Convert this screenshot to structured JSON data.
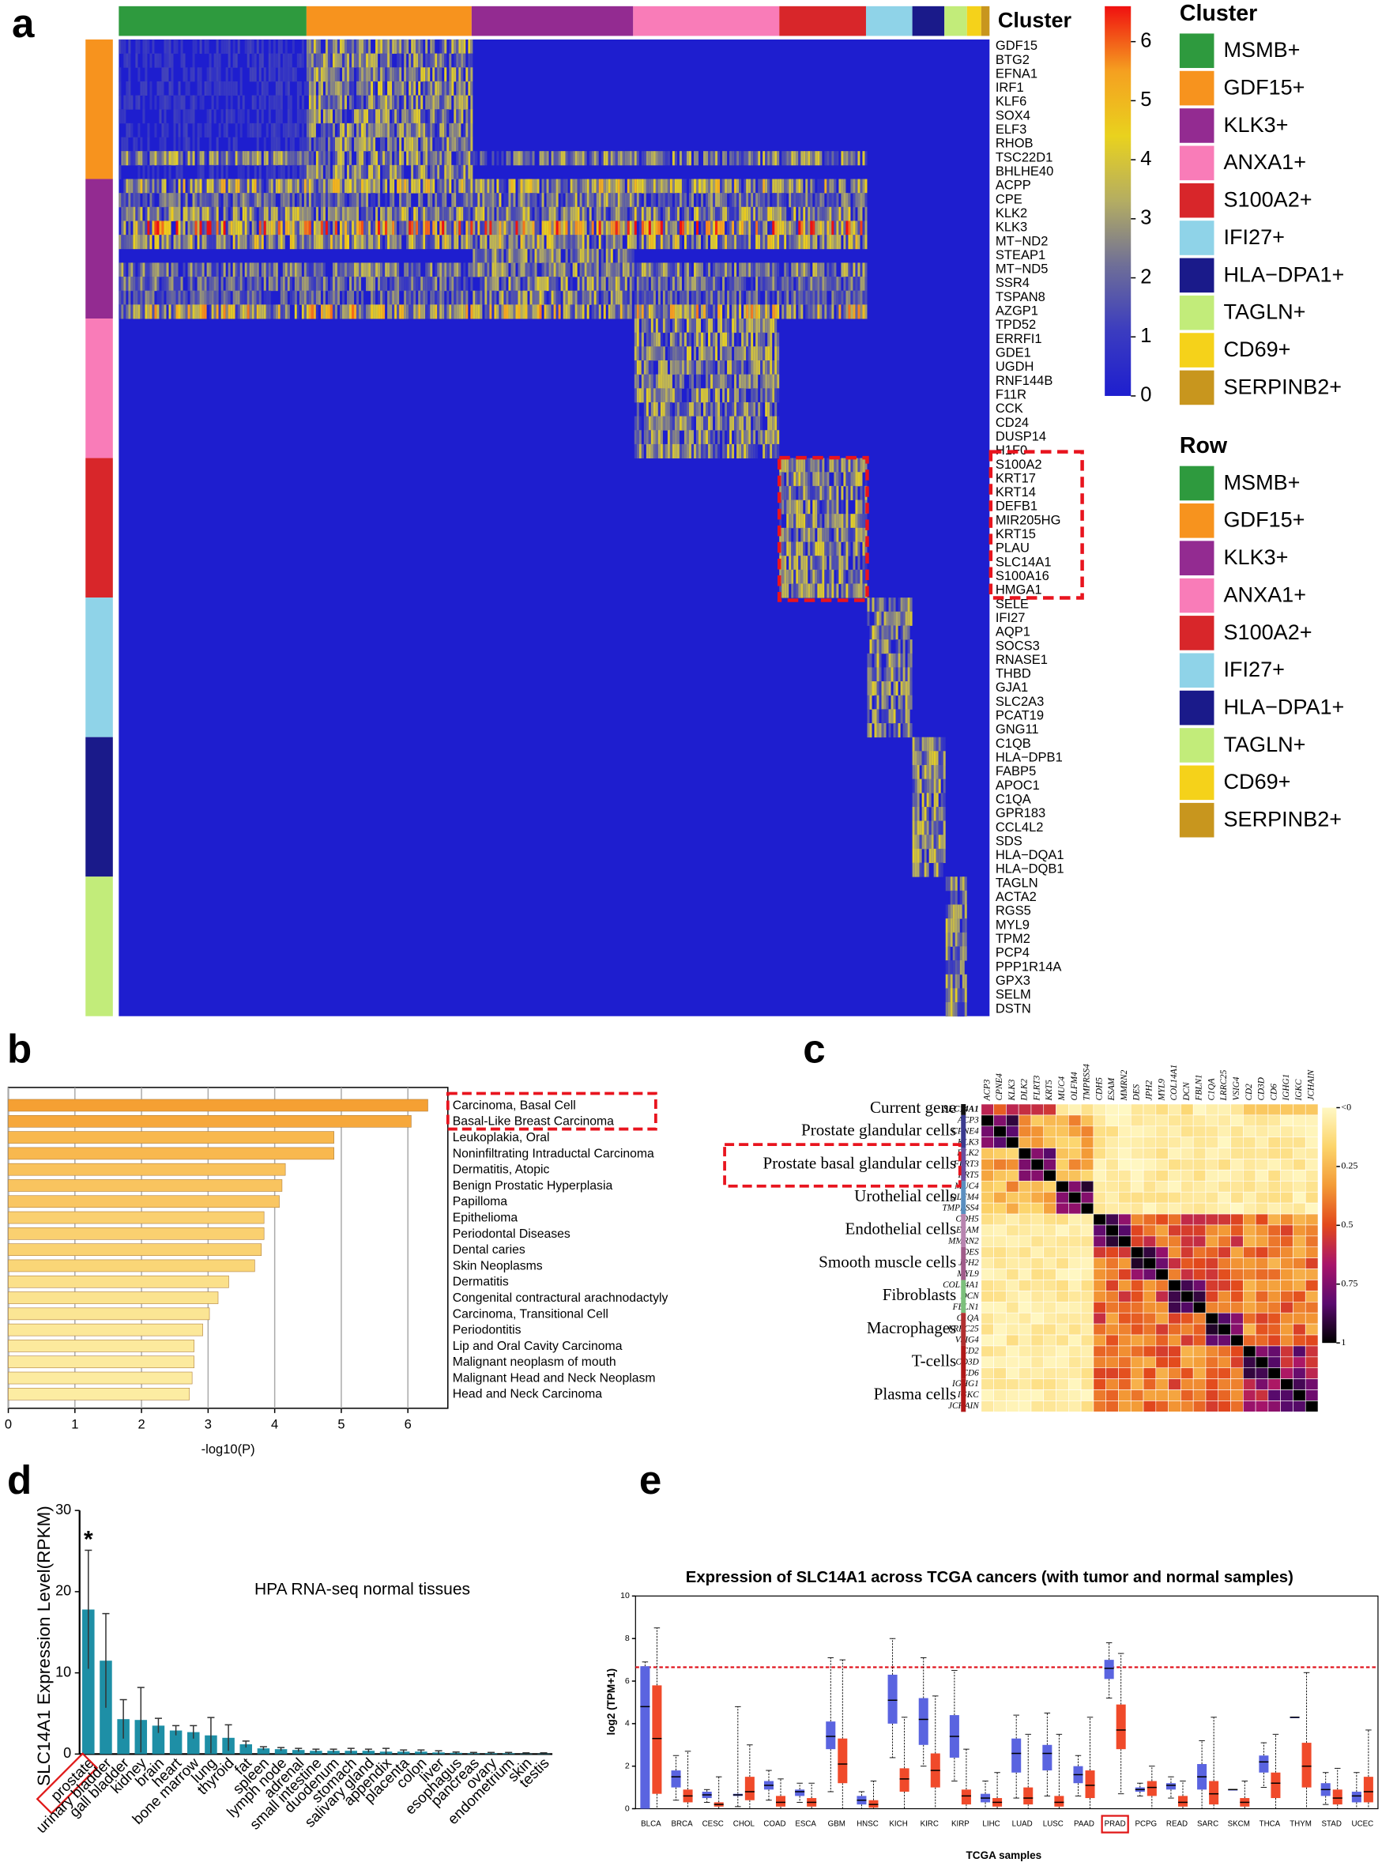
{
  "panels": [
    "a",
    "b",
    "c",
    "d",
    "e"
  ],
  "chart_data": [
    {
      "type": "heatmap",
      "cluster_label": "Cluster",
      "legend_titles": [
        "Cluster",
        "Row"
      ],
      "clusters": [
        {
          "name": "MSMB+",
          "color": "#2e9a3e"
        },
        {
          "name": "GDF15+",
          "color": "#f7931e"
        },
        {
          "name": "KLK3+",
          "color": "#932b91"
        },
        {
          "name": "ANXA1+",
          "color": "#f97cb8"
        },
        {
          "name": "S100A2+",
          "color": "#d8262a"
        },
        {
          "name": "IFI27+",
          "color": "#8fd3e8"
        },
        {
          "name": "HLA−DPA1+",
          "color": "#1a1a8a"
        },
        {
          "name": "TAGLN+",
          "color": "#c2ec7a"
        },
        {
          "name": "CD69+",
          "color": "#f5d21a"
        },
        {
          "name": "SERPINB2+",
          "color": "#c8961e"
        }
      ],
      "genes": [
        "GDF15",
        "BTG2",
        "EFNA1",
        "IRF1",
        "KLF6",
        "SOX4",
        "ELF3",
        "RHOB",
        "TSC22D1",
        "BHLHE40",
        "ACPP",
        "CPE",
        "KLK2",
        "KLK3",
        "MT−ND2",
        "STEAP1",
        "MT−ND5",
        "SSR4",
        "TSPAN8",
        "AZGP1",
        "TPD52",
        "ERRFI1",
        "GDE1",
        "UGDH",
        "RNF144B",
        "F11R",
        "CCK",
        "CD24",
        "DUSP14",
        "H1F0",
        "S100A2",
        "KRT17",
        "KRT14",
        "DEFB1",
        "MIR205HG",
        "KRT15",
        "PLAU",
        "SLC14A1",
        "S100A16",
        "HMGA1",
        "SELE",
        "IFI27",
        "AQP1",
        "SOCS3",
        "RNASE1",
        "THBD",
        "GJA1",
        "SLC2A3",
        "PCAT19",
        "GNG11",
        "C1QB",
        "HLA−DPB1",
        "FABP5",
        "APOC1",
        "C1QA",
        "GPR183",
        "CCL4L2",
        "SDS",
        "HLA−DQA1",
        "HLA−DQB1",
        "TAGLN",
        "ACTA2",
        "RGS5",
        "MYL9",
        "TPM2",
        "PCP4",
        "PPP1R14A",
        "GPX3",
        "SELM",
        "DSTN"
      ],
      "zlim": [
        0,
        6.6
      ],
      "zticks": [
        0,
        1,
        2,
        3,
        4,
        5,
        6
      ],
      "colormap": [
        "#1e1ecf",
        "#3b3cc0",
        "#6e6e98",
        "#b4ad62",
        "#e9d21e",
        "#f5a020",
        "#f01010"
      ]
    },
    {
      "type": "bar",
      "orientation": "horizontal",
      "xlabel": "-log10(P)",
      "categories": [
        "Carcinoma, Basal Cell",
        "Basal-Like Breast Carcinoma",
        "Leukoplakia, Oral",
        "Noninfiltrating Intraductal Carcinoma",
        "Dermatitis, Atopic",
        "Benign Prostatic Hyperplasia",
        "Papilloma",
        "Epithelioma",
        "Periodontal Diseases",
        "Dental caries",
        "Skin Neoplasms",
        "Dermatitis",
        "Congenital contractural arachnodactyly",
        "Carcinoma, Transitional Cell",
        "Periodontitis",
        "Lip and Oral Cavity Carcinoma",
        "Malignant neoplasm of mouth",
        "Malignant Head and Neck Neoplasm",
        "Head and Neck Carcinoma"
      ],
      "values": [
        6.3,
        6.05,
        4.89,
        4.89,
        4.16,
        4.11,
        4.07,
        3.84,
        3.84,
        3.8,
        3.7,
        3.31,
        3.15,
        3.02,
        2.92,
        2.79,
        2.79,
        2.76,
        2.72
      ],
      "colors": [
        "#f5a033",
        "#f6a83c",
        "#f8b84e",
        "#f8b84e",
        "#f9c25c",
        "#f9c45f",
        "#f9c662",
        "#fad070",
        "#fad070",
        "#fad272",
        "#fad677",
        "#fbe08a",
        "#fbe38f",
        "#fbe594",
        "#fce899",
        "#fcea9d",
        "#fcea9e",
        "#fceba0",
        "#fceca2"
      ],
      "xlim": [
        0,
        6.6
      ],
      "xticks": [
        0,
        1,
        2,
        3,
        4,
        5,
        6
      ],
      "grid": true
    },
    {
      "type": "correlation",
      "groups": [
        {
          "name": "Current gene",
          "color": "#111111"
        },
        {
          "name": "Prostate glandular cells",
          "color": "#3b3b8f"
        },
        {
          "name": "Prostate basal glandular cells",
          "color": "#6a4fa0"
        },
        {
          "name": "Urothelial cells",
          "color": "#5b8fc0"
        },
        {
          "name": "Endothelial cells",
          "color": "#b884b0"
        },
        {
          "name": "Smooth muscle cells",
          "color": "#a05b8a"
        },
        {
          "name": "Fibroblasts",
          "color": "#7cc07c"
        },
        {
          "name": "Macrophages",
          "color": "#b03030"
        },
        {
          "name": "T-cells",
          "color": "#b01818"
        },
        {
          "name": "Plasma cells",
          "color": "#b01818"
        }
      ],
      "row_genes": [
        "SLC14A1",
        "ACP3",
        "CPNE4",
        "KLK3",
        "DLK2",
        "FLRT3",
        "KRT5",
        "MUC4",
        "OLFM4",
        "TMPRSS4",
        "CDH5",
        "ESAM",
        "MMRN2",
        "DES",
        "JPH2",
        "MYL9",
        "COL14A1",
        "DCN",
        "FBLN1",
        "C1QA",
        "LRRC25",
        "VSIG4",
        "CD2",
        "CD3D",
        "CD6",
        "IGHG1",
        "IGKC",
        "JCHAIN"
      ],
      "col_genes": [
        "ACP3",
        "CPNE4",
        "KLK3",
        "DLK2",
        "FLRT3",
        "KRT5",
        "MUC4",
        "OLFM4",
        "TMPRSS4",
        "CDH5",
        "ESAM",
        "MMRN2",
        "DES",
        "JPH2",
        "MYL9",
        "COL14A1",
        "DCN",
        "FBLN1",
        "C1QA",
        "LRRC25",
        "VSIG4",
        "CD2",
        "CD3D",
        "CD6",
        "IGHG1",
        "IGKC",
        "JCHAIN"
      ],
      "zlim": [
        0,
        1
      ],
      "zticks": [
        {
          "value": 0,
          "label": "<0"
        },
        0.25,
        0.5,
        0.75,
        1
      ],
      "colormap": [
        "#fff8c4",
        "#fcd46a",
        "#f39a36",
        "#e2481c",
        "#a8146a",
        "#5a0a6e",
        "#000000"
      ]
    },
    {
      "type": "bar",
      "title": "HPA RNA-seq normal tissues",
      "ylabel": "SLC14A1 Expression Level(RPKM)",
      "annotation": "*",
      "color": "#1e8fa6",
      "categories": [
        "prostate",
        "urinary bladder",
        "gall bladder",
        "kidney",
        "brain",
        "heart",
        "bone marrow",
        "lung",
        "thyroid",
        "fat",
        "spleen",
        "lymph node",
        "adrenal",
        "small intestine",
        "duodenum",
        "stomach",
        "salivary gland",
        "appendix",
        "placenta",
        "colon",
        "liver",
        "esophagus",
        "pancreas",
        "ovary",
        "endometrium",
        "skin",
        "testis"
      ],
      "values": [
        17.8,
        11.5,
        4.3,
        4.2,
        3.5,
        2.9,
        2.7,
        2.3,
        2.0,
        1.2,
        0.7,
        0.6,
        0.5,
        0.4,
        0.4,
        0.4,
        0.4,
        0.3,
        0.3,
        0.3,
        0.2,
        0.15,
        0.1,
        0.1,
        0.1,
        0.05,
        0.05
      ],
      "errors": [
        7.3,
        5.8,
        2.4,
        4.0,
        0.9,
        0.6,
        0.8,
        2.2,
        1.6,
        0.4,
        0.2,
        0.2,
        0.2,
        0.2,
        0.2,
        0.3,
        0.2,
        0.4,
        0.2,
        0.2,
        0.2,
        0.1,
        0.1,
        0.1,
        0.1,
        0.1,
        0.1
      ],
      "ylim": [
        0,
        30
      ],
      "yticks": [
        0,
        10,
        20,
        30
      ]
    },
    {
      "type": "box",
      "title": "Expression of SLC14A1 across TCGA cancers (with tumor and normal samples)",
      "xlabel": "TCGA samples",
      "ylabel": "log2 (TPM+1)",
      "categories": [
        "BLCA",
        "BRCA",
        "CESC",
        "CHOL",
        "COAD",
        "ESCA",
        "GBM",
        "HNSC",
        "KICH",
        "KIRC",
        "KIRP",
        "LIHC",
        "LUAD",
        "LUSC",
        "PAAD",
        "PRAD",
        "PCPG",
        "READ",
        "SARC",
        "SKCM",
        "THCA",
        "THYM",
        "STAD",
        "UCEC"
      ],
      "series": [
        {
          "color": "#5a64e0",
          "median": [
            4.8,
            1.5,
            0.65,
            0.65,
            1.1,
            0.8,
            3.4,
            0.4,
            5.1,
            4.2,
            3.4,
            0.5,
            2.6,
            2.6,
            1.6,
            6.6,
            0.9,
            1.1,
            1.5,
            0.9,
            2.2,
            4.3,
            0.9,
            0.6
          ],
          "q1": [
            0,
            1.0,
            0.5,
            0.6,
            0.9,
            0.6,
            2.8,
            0.2,
            4.0,
            3.0,
            2.4,
            0.3,
            1.7,
            1.8,
            1.2,
            6.1,
            0.8,
            0.9,
            0.9,
            0.9,
            1.7,
            4.3,
            0.6,
            0.3
          ],
          "q3": [
            6.7,
            1.8,
            0.8,
            0.7,
            1.3,
            0.9,
            4.1,
            0.6,
            6.3,
            5.2,
            4.4,
            0.7,
            3.3,
            3.0,
            2.0,
            7.0,
            1.0,
            1.2,
            2.1,
            0.9,
            2.5,
            4.3,
            1.2,
            0.8
          ],
          "low": [
            0,
            0.4,
            0.3,
            0.1,
            0.4,
            0.3,
            0.8,
            0,
            2.4,
            2.0,
            1.3,
            0,
            0.5,
            0.6,
            0.6,
            5.2,
            0.6,
            0.5,
            0,
            0.9,
            1.0,
            4.3,
            0.2,
            0
          ],
          "high": [
            6.9,
            2.5,
            0.9,
            4.8,
            1.8,
            1.2,
            7.1,
            0.8,
            8.0,
            7.1,
            6.5,
            1.3,
            4.4,
            4.5,
            2.5,
            7.8,
            1.2,
            1.5,
            3.2,
            0.9,
            3.1,
            4.3,
            1.7,
            1.7
          ]
        },
        {
          "color": "#f04a2a",
          "median": [
            3.3,
            0.6,
            0.2,
            0.8,
            0.3,
            0.3,
            2.1,
            0.2,
            1.4,
            1.8,
            0.6,
            0.3,
            0.5,
            0.3,
            1.1,
            3.7,
            1.0,
            0.3,
            0.7,
            0.3,
            1.2,
            2.0,
            0.5,
            0.8
          ],
          "q1": [
            0.7,
            0.3,
            0.1,
            0.4,
            0.1,
            0.1,
            1.2,
            0.05,
            0.8,
            1.0,
            0.2,
            0.1,
            0.2,
            0.1,
            0.5,
            2.8,
            0.6,
            0.1,
            0.2,
            0.1,
            0.5,
            1.0,
            0.2,
            0.3
          ],
          "q3": [
            5.8,
            0.9,
            0.3,
            1.5,
            0.6,
            0.5,
            3.3,
            0.4,
            1.9,
            2.6,
            0.9,
            0.5,
            1.0,
            0.6,
            1.8,
            4.9,
            1.3,
            0.6,
            1.3,
            0.5,
            1.7,
            3.1,
            0.9,
            1.5
          ],
          "low": [
            0,
            0,
            0,
            0,
            0,
            0,
            0,
            0,
            0,
            0,
            0,
            0,
            0,
            0,
            0,
            0.7,
            0,
            0,
            0,
            0,
            0,
            0,
            0,
            0
          ],
          "high": [
            8.5,
            2.7,
            1.5,
            3.0,
            1.4,
            1.2,
            7.0,
            1.3,
            4.3,
            5.3,
            2.8,
            1.7,
            3.5,
            3.5,
            4.3,
            7.3,
            2.0,
            1.3,
            4.3,
            1.3,
            3.5,
            6.4,
            1.9,
            3.7
          ]
        }
      ],
      "hline": 6.65,
      "hline_color": "#e0141e",
      "ylim": [
        0,
        10
      ],
      "yticks": [
        0,
        2,
        4,
        6,
        8,
        10
      ]
    }
  ]
}
